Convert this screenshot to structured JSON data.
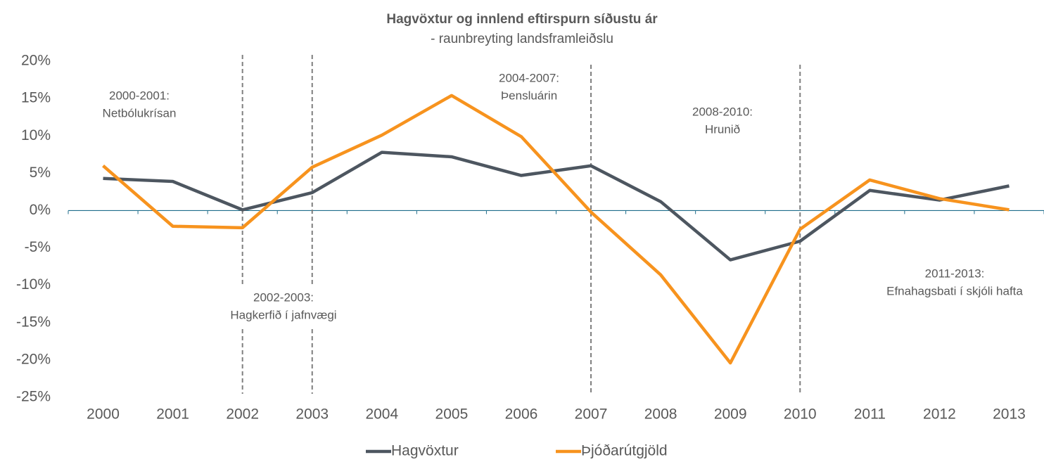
{
  "chart_data": {
    "type": "line",
    "title": "Hagvöxtur og innlend eftirspurn síðustu ár",
    "subtitle": "- raunbreyting landsframleiðslu",
    "categories": [
      "2000",
      "2001",
      "2002",
      "2003",
      "2004",
      "2005",
      "2006",
      "2007",
      "2008",
      "2009",
      "2010",
      "2011",
      "2012",
      "2013"
    ],
    "series": [
      {
        "name": "Hagvöxtur",
        "color": "#4d5660",
        "values": [
          4.3,
          3.9,
          0.1,
          2.4,
          7.8,
          7.2,
          4.7,
          6.0,
          1.2,
          -6.6,
          -4.1,
          2.7,
          1.4,
          3.3
        ]
      },
      {
        "name": "Þjóðarútgjöld",
        "color": "#f7931e",
        "values": [
          6.0,
          -2.1,
          -2.3,
          5.8,
          10.1,
          15.4,
          9.9,
          -0.2,
          -8.6,
          -20.4,
          -2.5,
          4.1,
          1.6,
          0.1
        ]
      }
    ],
    "ylim": [
      -25,
      20
    ],
    "yticks": [
      {
        "value": -25,
        "label": "-25%"
      },
      {
        "value": -20,
        "label": "-20%"
      },
      {
        "value": -15,
        "label": "-15%"
      },
      {
        "value": -10,
        "label": "-10%"
      },
      {
        "value": -5,
        "label": "-5%"
      },
      {
        "value": 0,
        "label": "0%"
      },
      {
        "value": 5,
        "label": "5%"
      },
      {
        "value": 10,
        "label": "10%"
      },
      {
        "value": 15,
        "label": "15%"
      },
      {
        "value": 20,
        "label": "20%"
      }
    ],
    "dividers": [
      "2002",
      "2003",
      "2007",
      "2010"
    ],
    "annotations": [
      {
        "lines": [
          "2000-2001:",
          "Netbólukrísan"
        ]
      },
      {
        "lines": [
          "2002-2003:",
          "Hagkerfið í jafnvægi"
        ]
      },
      {
        "lines": [
          "2004-2007:",
          "Þensluárin"
        ]
      },
      {
        "lines": [
          "2008-2010:",
          "Hrunið"
        ]
      },
      {
        "lines": [
          "2011-2013:",
          "Efnahagsbati í skjóli hafta"
        ]
      }
    ],
    "legend": "bottom"
  }
}
